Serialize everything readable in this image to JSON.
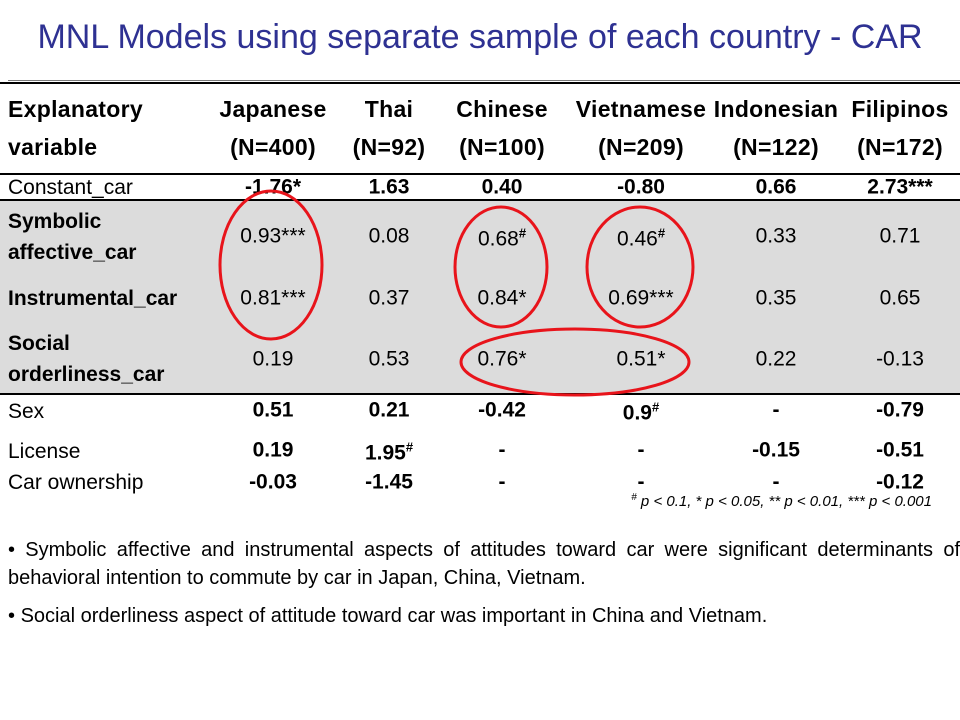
{
  "title": "MNL Models using separate sample of each country - CAR",
  "table": {
    "header_label_line1": "Explanatory",
    "header_label_line2": "variable",
    "columns": [
      {
        "name": "Japanese",
        "n": "(N=400)"
      },
      {
        "name": "Thai",
        "n": "(N=92)"
      },
      {
        "name": "Chinese",
        "n": "(N=100)"
      },
      {
        "name": "Vietnamese",
        "n": "(N=209)"
      },
      {
        "name": "Indonesian",
        "n": "(N=122)"
      },
      {
        "name": "Filipinos",
        "n": "(N=172)"
      }
    ],
    "rows": [
      {
        "label": [
          "Constant_car"
        ],
        "values": [
          {
            "v": "-1.76*",
            "sup": ""
          },
          {
            "v": "1.63",
            "sup": ""
          },
          {
            "v": "0.40",
            "sup": ""
          },
          {
            "v": "-0.80",
            "sup": ""
          },
          {
            "v": "0.66",
            "sup": ""
          },
          {
            "v": "2.73***",
            "sup": ""
          }
        ]
      },
      {
        "label": [
          "Symbolic",
          "affective_car"
        ],
        "values": [
          {
            "v": "0.93***",
            "sup": ""
          },
          {
            "v": "0.08",
            "sup": ""
          },
          {
            "v": "0.68",
            "sup": "#"
          },
          {
            "v": "0.46",
            "sup": "#"
          },
          {
            "v": "0.33",
            "sup": ""
          },
          {
            "v": "0.71",
            "sup": ""
          }
        ]
      },
      {
        "label": [
          "Instrumental_car"
        ],
        "values": [
          {
            "v": "0.81***",
            "sup": ""
          },
          {
            "v": "0.37",
            "sup": ""
          },
          {
            "v": "0.84*",
            "sup": ""
          },
          {
            "v": "0.69***",
            "sup": ""
          },
          {
            "v": "0.35",
            "sup": ""
          },
          {
            "v": "0.65",
            "sup": ""
          }
        ]
      },
      {
        "label": [
          "Social",
          "orderliness_car"
        ],
        "values": [
          {
            "v": "0.19",
            "sup": ""
          },
          {
            "v": "0.53",
            "sup": ""
          },
          {
            "v": "0.76*",
            "sup": ""
          },
          {
            "v": "0.51*",
            "sup": ""
          },
          {
            "v": "0.22",
            "sup": ""
          },
          {
            "v": "-0.13",
            "sup": ""
          }
        ]
      },
      {
        "label": [
          "Sex"
        ],
        "values": [
          {
            "v": "0.51",
            "sup": ""
          },
          {
            "v": "0.21",
            "sup": ""
          },
          {
            "v": "-0.42",
            "sup": ""
          },
          {
            "v": "0.9",
            "sup": "#"
          },
          {
            "v": "-",
            "sup": ""
          },
          {
            "v": "-0.79",
            "sup": ""
          }
        ]
      },
      {
        "label": [
          "License"
        ],
        "values": [
          {
            "v": "0.19",
            "sup": ""
          },
          {
            "v": "1.95",
            "sup": "#"
          },
          {
            "v": "-",
            "sup": ""
          },
          {
            "v": "-",
            "sup": ""
          },
          {
            "v": "-0.15",
            "sup": ""
          },
          {
            "v": "-0.51",
            "sup": ""
          }
        ]
      },
      {
        "label": [
          "Car ownership"
        ],
        "values": [
          {
            "v": "-0.03",
            "sup": ""
          },
          {
            "v": "-1.45",
            "sup": ""
          },
          {
            "v": "-",
            "sup": ""
          },
          {
            "v": "-",
            "sup": ""
          },
          {
            "v": "-",
            "sup": ""
          },
          {
            "v": "-0.12",
            "sup": ""
          }
        ]
      }
    ]
  },
  "footnote": {
    "symbol": "#",
    "text": " p < 0.1, * p < 0.05, ** p < 0.01, *** p < 0.001"
  },
  "bullets": [
    "Symbolic affective and instrumental aspects of attitudes toward car were significant determinants of behavioral intention to commute by car in Japan, China, Vietnam.",
    "Social orderliness aspect of attitude toward car was important in China and Vietnam."
  ],
  "colors": {
    "title": "#2e3192",
    "highlight_circle": "#e8141b",
    "shaded_rows": "#dcdcdc"
  }
}
